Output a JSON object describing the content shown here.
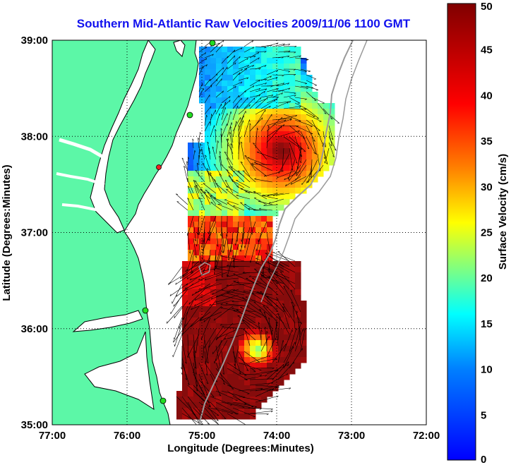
{
  "map": {
    "title": "Southern Mid-Atlantic Raw Velocities 2009/11/06 1100 GMT",
    "xlabel": "Longitude (Degrees:Minutes)",
    "ylabel": "Latitude (Degrees:Minutes)",
    "x_ticks": [
      "77:00",
      "76:00",
      "75:00",
      "74:00",
      "73:00",
      "72:00"
    ],
    "y_ticks": [
      "39:00",
      "38:00",
      "37:00",
      "36:00",
      "35:00"
    ],
    "lon_range": [
      -77,
      -72
    ],
    "lat_range": [
      35,
      39
    ],
    "grid": "dotted",
    "land_color": "#5cf7a7",
    "coast_color": "#000000",
    "bathymetry_color": "#9a9a9a",
    "vector_color": "#000000",
    "station_color": "#22dd22",
    "station_alert_color": "#ee2222"
  },
  "colorbar": {
    "label": "Surface Velocity (cm/s)",
    "min": 0,
    "max": 50,
    "ticks": [
      "0",
      "5",
      "10",
      "15",
      "20",
      "25",
      "30",
      "35",
      "40",
      "45",
      "50"
    ],
    "colormap": "jet"
  }
}
